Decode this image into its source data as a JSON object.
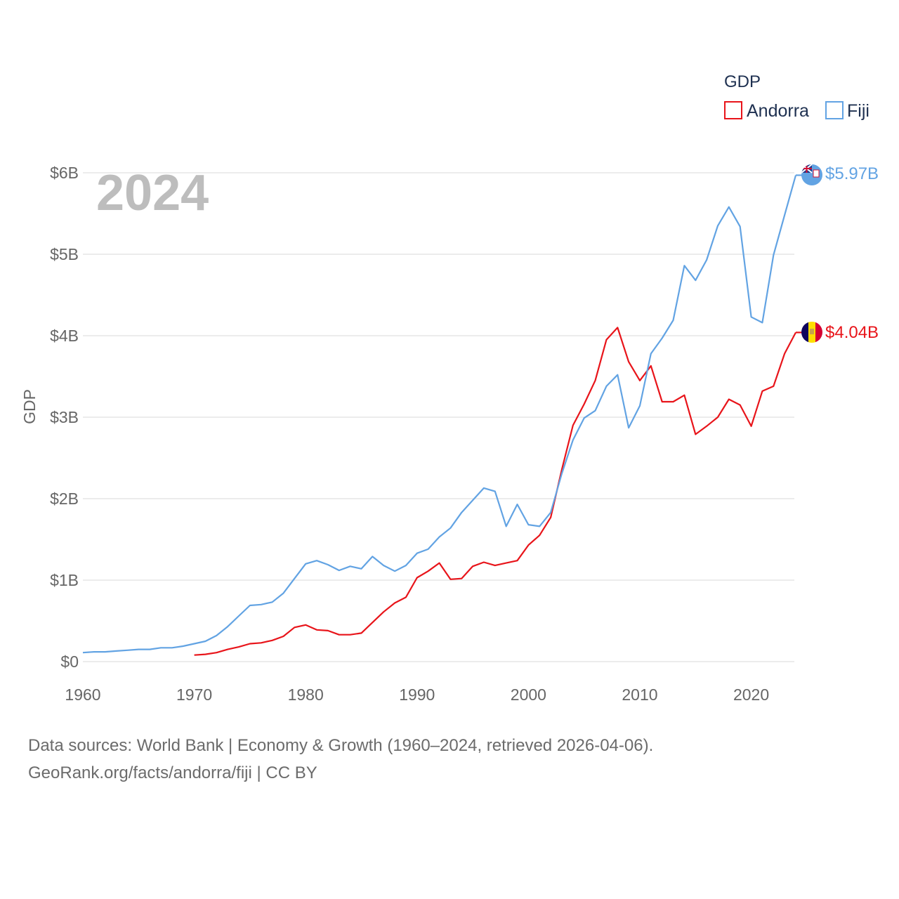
{
  "legend": {
    "title": "GDP",
    "items": [
      {
        "label": "Andorra",
        "color": "#e8141a"
      },
      {
        "label": "Fiji",
        "color": "#62a3e3"
      }
    ]
  },
  "year_overlay": "2024",
  "footer": {
    "line1": "Data sources: World Bank | Economy & Growth (1960–2024, retrieved 2026-04-06).",
    "line2": "GeoRank.org/facts/andorra/fiji | CC BY"
  },
  "chart_data": {
    "type": "line",
    "title": "GDP",
    "xlabel": "",
    "ylabel": "GDP",
    "xlim": [
      1960,
      2024
    ],
    "ylim": [
      0,
      6
    ],
    "x_ticks": [
      1960,
      1970,
      1980,
      1990,
      2000,
      2010,
      2020
    ],
    "y_ticks": [
      {
        "value": 0,
        "label": "$0"
      },
      {
        "value": 1,
        "label": "$1B"
      },
      {
        "value": 2,
        "label": "$2B"
      },
      {
        "value": 3,
        "label": "$3B"
      },
      {
        "value": 4,
        "label": "$4B"
      },
      {
        "value": 5,
        "label": "$5B"
      },
      {
        "value": 6,
        "label": "$6B"
      }
    ],
    "grid": true,
    "legend_position": "top-right",
    "series": [
      {
        "name": "Andorra",
        "color": "#e8141a",
        "end_label": "$4.04B",
        "flag": "andorra-flag",
        "x": [
          1970,
          1971,
          1972,
          1973,
          1974,
          1975,
          1976,
          1977,
          1978,
          1979,
          1980,
          1981,
          1982,
          1983,
          1984,
          1985,
          1986,
          1987,
          1988,
          1989,
          1990,
          1991,
          1992,
          1993,
          1994,
          1995,
          1996,
          1997,
          1998,
          1999,
          2000,
          2001,
          2002,
          2003,
          2004,
          2005,
          2006,
          2007,
          2008,
          2009,
          2010,
          2011,
          2012,
          2013,
          2014,
          2015,
          2016,
          2017,
          2018,
          2019,
          2020,
          2021,
          2022,
          2023,
          2024
        ],
        "values": [
          0.08,
          0.09,
          0.11,
          0.15,
          0.18,
          0.22,
          0.23,
          0.26,
          0.31,
          0.42,
          0.45,
          0.39,
          0.38,
          0.33,
          0.33,
          0.35,
          0.48,
          0.61,
          0.72,
          0.79,
          1.03,
          1.11,
          1.21,
          1.01,
          1.02,
          1.17,
          1.22,
          1.18,
          1.21,
          1.24,
          1.43,
          1.55,
          1.77,
          2.36,
          2.9,
          3.16,
          3.45,
          3.95,
          4.1,
          3.68,
          3.45,
          3.63,
          3.19,
          3.19,
          3.27,
          2.79,
          2.89,
          3.0,
          3.22,
          3.15,
          2.89,
          3.32,
          3.38,
          3.78,
          4.04
        ]
      },
      {
        "name": "Fiji",
        "color": "#62a3e3",
        "end_label": "$5.97B",
        "flag": "fiji-flag",
        "x": [
          1960,
          1961,
          1962,
          1963,
          1964,
          1965,
          1966,
          1967,
          1968,
          1969,
          1970,
          1971,
          1972,
          1973,
          1974,
          1975,
          1976,
          1977,
          1978,
          1979,
          1980,
          1981,
          1982,
          1983,
          1984,
          1985,
          1986,
          1987,
          1988,
          1989,
          1990,
          1991,
          1992,
          1993,
          1994,
          1995,
          1996,
          1997,
          1998,
          1999,
          2000,
          2001,
          2002,
          2003,
          2004,
          2005,
          2006,
          2007,
          2008,
          2009,
          2010,
          2011,
          2012,
          2013,
          2014,
          2015,
          2016,
          2017,
          2018,
          2019,
          2020,
          2021,
          2022,
          2023,
          2024
        ],
        "values": [
          0.11,
          0.12,
          0.12,
          0.13,
          0.14,
          0.15,
          0.15,
          0.17,
          0.17,
          0.19,
          0.22,
          0.25,
          0.32,
          0.43,
          0.56,
          0.69,
          0.7,
          0.73,
          0.84,
          1.02,
          1.2,
          1.24,
          1.19,
          1.12,
          1.17,
          1.14,
          1.29,
          1.18,
          1.11,
          1.18,
          1.33,
          1.38,
          1.53,
          1.64,
          1.83,
          1.98,
          2.13,
          2.09,
          1.66,
          1.93,
          1.68,
          1.66,
          1.83,
          2.31,
          2.72,
          2.99,
          3.08,
          3.38,
          3.52,
          2.87,
          3.14,
          3.78,
          3.97,
          4.19,
          4.86,
          4.68,
          4.93,
          5.35,
          5.58,
          5.34,
          4.23,
          4.16,
          4.99,
          5.48,
          5.97
        ]
      }
    ]
  }
}
